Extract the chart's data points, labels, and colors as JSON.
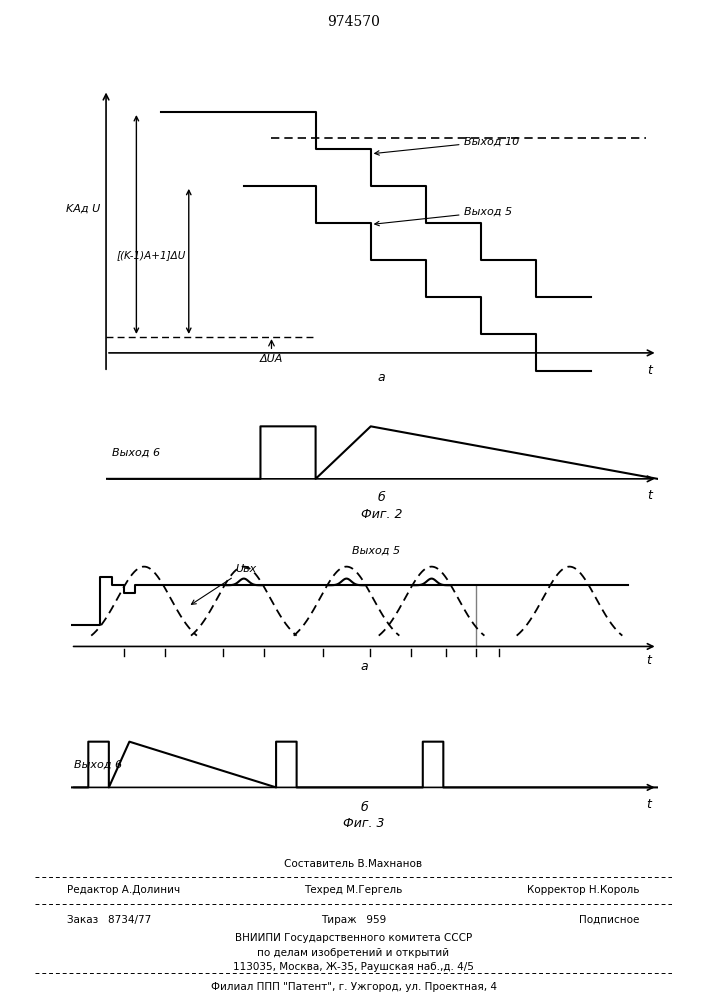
{
  "title": "974570",
  "fig2_label": "Фиг. 2",
  "fig3_label": "Фиг. 3",
  "fig2a_label": "a",
  "fig2b_label": "б",
  "fig3a_label": "a",
  "fig3b_label": "б",
  "t_label": "t",
  "KA_label": "KАд U",
  "Km1_label": "[(K-1)A+1]ΔU",
  "dUA_label": "ΔUA",
  "vyhod10_label": "Выход 10",
  "vyhod5_label": "Выход 5",
  "vyhod6_label": "Выход 6",
  "Uvx_label": "Uвх",
  "editor_line": "Редактор А.Долинич",
  "compositor_line": "Составитель В.Махнанов",
  "techred_line": "Техред М.Гергель",
  "corrector_line": "Корректор Н.Король",
  "order_line": "Заказ   8734/77",
  "tirazh_line": "Тираж   959",
  "podpisnoe_line": "Подписное",
  "vniip_line": "ВНИИПИ Государственного комитета СССР",
  "dela_line": "по делам изобретений и открытий",
  "address_line": "113035, Москва, Ж-35, Раушская наб.,д. 4/5",
  "filial_line": "Филиал ППП \"Патент\", г. Ужгород, ул. Проектная, 4"
}
